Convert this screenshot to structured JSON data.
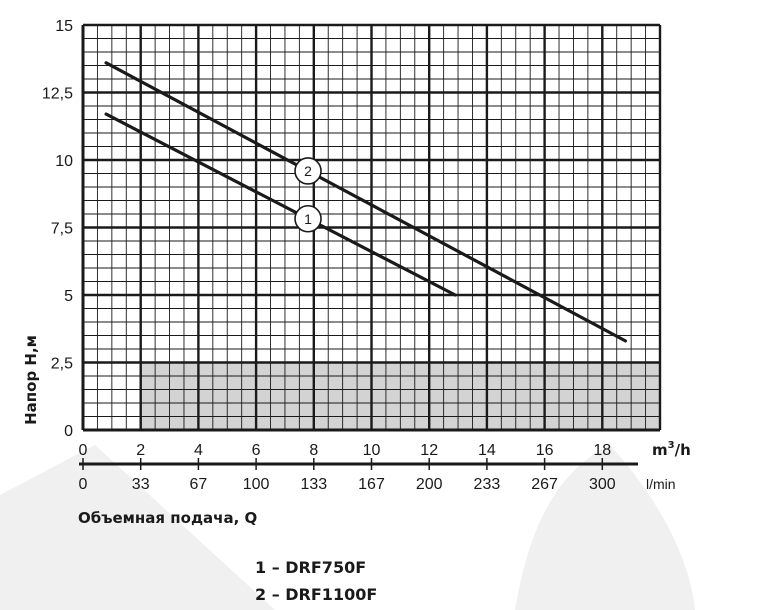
{
  "chart_data": {
    "type": "line",
    "title": "",
    "xlabel": "",
    "ylabel": "Напор  H,м",
    "x_unit": "m³/h",
    "x_unit_base": "m",
    "x_unit_exp": "3",
    "x_unit_tail": "/h",
    "secondary_x_unit": "l/min",
    "secondary_x_title": "Объемная подача, Q",
    "xlim": [
      0,
      20
    ],
    "ylim": [
      0,
      15
    ],
    "grid": true,
    "shaded_region": {
      "x": [
        2,
        20
      ],
      "y": [
        0,
        2.5
      ]
    },
    "x_ticks": [
      {
        "value": 0,
        "label": "0"
      },
      {
        "value": 2,
        "label": "2"
      },
      {
        "value": 4,
        "label": "4"
      },
      {
        "value": 6,
        "label": "6"
      },
      {
        "value": 8,
        "label": "8"
      },
      {
        "value": 10,
        "label": "10"
      },
      {
        "value": 12,
        "label": "12"
      },
      {
        "value": 14,
        "label": "14"
      },
      {
        "value": 16,
        "label": "16"
      },
      {
        "value": 18,
        "label": "18"
      }
    ],
    "secondary_x_ticks": [
      {
        "value": 0,
        "label": "0"
      },
      {
        "value": 2,
        "label": "33"
      },
      {
        "value": 4,
        "label": "67"
      },
      {
        "value": 6,
        "label": "100"
      },
      {
        "value": 8,
        "label": "133"
      },
      {
        "value": 10,
        "label": "167"
      },
      {
        "value": 12,
        "label": "200"
      },
      {
        "value": 14,
        "label": "233"
      },
      {
        "value": 16,
        "label": "267"
      },
      {
        "value": 18,
        "label": "300"
      }
    ],
    "y_ticks": [
      {
        "value": 0,
        "label": "0"
      },
      {
        "value": 2.5,
        "label": "2,5"
      },
      {
        "value": 5,
        "label": "5"
      },
      {
        "value": 7.5,
        "label": "7,5"
      },
      {
        "value": 10,
        "label": "10"
      },
      {
        "value": 12.5,
        "label": "12,5"
      },
      {
        "value": 15,
        "label": "15"
      }
    ],
    "series": [
      {
        "marker": "1",
        "name": "1 – DRF750F",
        "marker_at": 7.8,
        "x": [
          0.8,
          12.9
        ],
        "y": [
          11.7,
          5.0
        ]
      },
      {
        "marker": "2",
        "name": "2 – DRF1100F",
        "marker_at": 7.8,
        "x": [
          0.8,
          18.8
        ],
        "y": [
          13.6,
          3.3
        ]
      }
    ],
    "colors": {
      "line": "#1a1a1a",
      "grid": "#1a1a1a",
      "shade": "#d3d3d3",
      "watermark": "#f0f0f0"
    }
  }
}
